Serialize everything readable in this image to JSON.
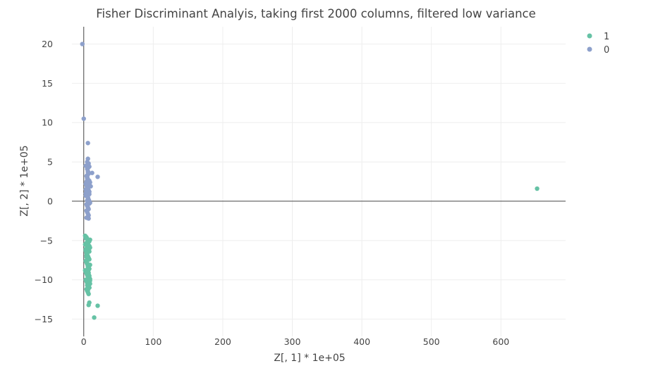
{
  "chart_data": {
    "type": "scatter",
    "title": "Fisher Discriminant Analyis, taking first 2000 columns, filtered low variance",
    "xlabel": "Z[, 1] * 1e+05",
    "ylabel": "Z[, 2] * 1e+05",
    "xlim": [
      -17,
      693
    ],
    "ylim": [
      -17.2,
      22.2
    ],
    "x_ticks": [
      0,
      100,
      200,
      300,
      400,
      500,
      600
    ],
    "y_ticks": [
      -15,
      -10,
      -5,
      0,
      5,
      10,
      15,
      20
    ],
    "x_tick_labels": [
      "0",
      "100",
      "200",
      "300",
      "400",
      "500",
      "600"
    ],
    "y_tick_labels": [
      "−15",
      "−10",
      "−5",
      "0",
      "5",
      "10",
      "15",
      "20"
    ],
    "grid": true,
    "zero_lines": true,
    "legend_position": "top-right",
    "series": [
      {
        "name": "1",
        "color": "#66c2a5",
        "x": [
          2,
          3,
          4,
          5,
          6,
          7,
          8,
          9,
          3,
          4,
          5,
          6,
          7,
          8,
          9,
          4,
          5,
          6,
          7,
          8,
          3,
          4,
          5,
          6,
          7,
          8,
          9,
          2,
          3,
          4,
          5,
          6,
          7,
          8,
          3,
          4,
          5,
          6,
          7,
          8,
          9,
          4,
          5,
          6,
          7,
          8,
          3,
          4,
          5,
          6,
          7,
          8,
          9,
          2,
          3,
          4,
          5,
          6,
          7,
          8,
          3,
          4,
          5,
          6,
          7,
          8,
          5,
          6,
          7,
          8,
          6,
          7,
          8,
          9,
          7,
          20,
          15,
          652
        ],
        "y": [
          -4.4,
          -4.5,
          -4.6,
          -4.8,
          -5.0,
          -5.2,
          -5.1,
          -4.9,
          -5.4,
          -5.6,
          -5.8,
          -6.0,
          -6.2,
          -6.4,
          -5.9,
          -6.6,
          -6.8,
          -7.0,
          -7.2,
          -7.4,
          -7.6,
          -7.8,
          -8.0,
          -8.2,
          -8.4,
          -8.6,
          -8.1,
          -8.8,
          -9.0,
          -9.2,
          -9.4,
          -9.6,
          -9.8,
          -9.5,
          -10.0,
          -10.2,
          -10.4,
          -10.6,
          -10.8,
          -11.0,
          -9.9,
          -11.2,
          -11.4,
          -11.6,
          -11.8,
          -11.0,
          -6.3,
          -6.9,
          -7.5,
          -8.3,
          -9.1,
          -9.7,
          -10.1,
          -5.5,
          -6.1,
          -7.1,
          -7.9,
          -8.5,
          -9.3,
          -10.3,
          -4.7,
          -5.3,
          -6.5,
          -7.3,
          -8.7,
          -9.9,
          -10.7,
          -11.3,
          -4.9,
          -5.7,
          -8.9,
          -9.6,
          -12.9,
          -10.5,
          -13.2,
          -13.3,
          -14.8,
          1.6
        ]
      },
      {
        "name": "0",
        "color": "#8da0cb",
        "x": [
          -2,
          0,
          6,
          5,
          6,
          7,
          8,
          5,
          6,
          7,
          4,
          5,
          6,
          8,
          9,
          3,
          4,
          5,
          6,
          7,
          8,
          3,
          4,
          5,
          6,
          7,
          8,
          9,
          4,
          5,
          6,
          7,
          3,
          4,
          5,
          6,
          7,
          8,
          4,
          5,
          6,
          7,
          8,
          3,
          4,
          5,
          6,
          7,
          5,
          6,
          7,
          4,
          5,
          6,
          5,
          6,
          7,
          5,
          6,
          3,
          4,
          20,
          12,
          10
        ],
        "y": [
          20.0,
          10.5,
          7.4,
          5.0,
          5.4,
          4.8,
          4.4,
          4.1,
          3.8,
          3.5,
          3.2,
          3.0,
          2.8,
          2.6,
          2.4,
          2.2,
          2.0,
          1.8,
          1.6,
          1.4,
          1.2,
          1.0,
          0.8,
          0.6,
          0.4,
          0.2,
          0.0,
          -0.2,
          -0.4,
          -0.6,
          -0.8,
          -1.0,
          1.5,
          2.5,
          3.3,
          4.2,
          1.9,
          0.9,
          -1.2,
          -1.4,
          -1.6,
          -1.8,
          -0.3,
          0.7,
          1.3,
          2.1,
          2.7,
          3.6,
          3.1,
          -2.0,
          -2.2,
          -2.1,
          0.1,
          0.5,
          1.1,
          1.7,
          2.3,
          2.9,
          3.7,
          4.5,
          1.0,
          3.1,
          3.6,
          1.9
        ]
      }
    ]
  }
}
